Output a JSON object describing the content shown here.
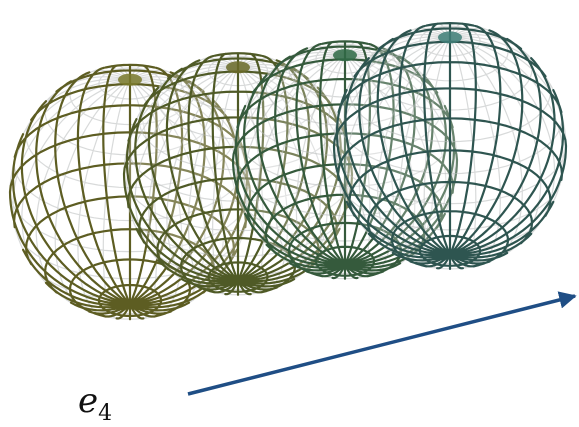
{
  "label": {
    "base": "e",
    "subscript": "4"
  }
}
